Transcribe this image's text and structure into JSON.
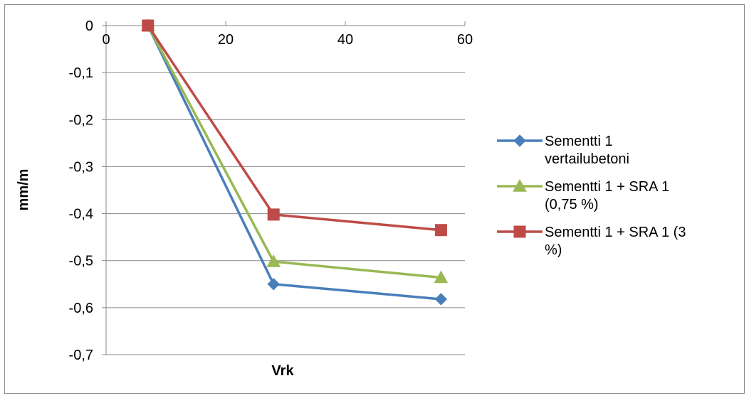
{
  "chart_data": {
    "type": "line",
    "title": "",
    "xlabel": "Vrk",
    "ylabel": "mm/m",
    "xlim": [
      0,
      60
    ],
    "ylim": [
      -0.7,
      0
    ],
    "x_ticks": [
      "0",
      "20",
      "40",
      "60"
    ],
    "y_ticks": [
      "0",
      "-0,1",
      "-0,2",
      "-0,3",
      "-0,4",
      "-0,5",
      "-0,6",
      "-0,7"
    ],
    "grid": "horizontal",
    "legend_position": "right",
    "series": [
      {
        "name_lines": [
          "Sementti 1",
          "vertailubetoni"
        ],
        "color": "#4a7ebb",
        "marker": "diamond",
        "x": [
          7,
          28,
          56
        ],
        "y": [
          0,
          -0.55,
          -0.582
        ]
      },
      {
        "name_lines": [
          "Sementti 1 + SRA 1",
          "(0,75 %)"
        ],
        "color": "#98b954",
        "marker": "triangle",
        "x": [
          7,
          28,
          56
        ],
        "y": [
          0,
          -0.502,
          -0.536
        ]
      },
      {
        "name_lines": [
          "Sementti 1 + SRA 1 (3",
          "%)"
        ],
        "color": "#be4b48",
        "marker": "square",
        "x": [
          7,
          28,
          56
        ],
        "y": [
          0,
          -0.402,
          -0.435
        ]
      }
    ]
  }
}
